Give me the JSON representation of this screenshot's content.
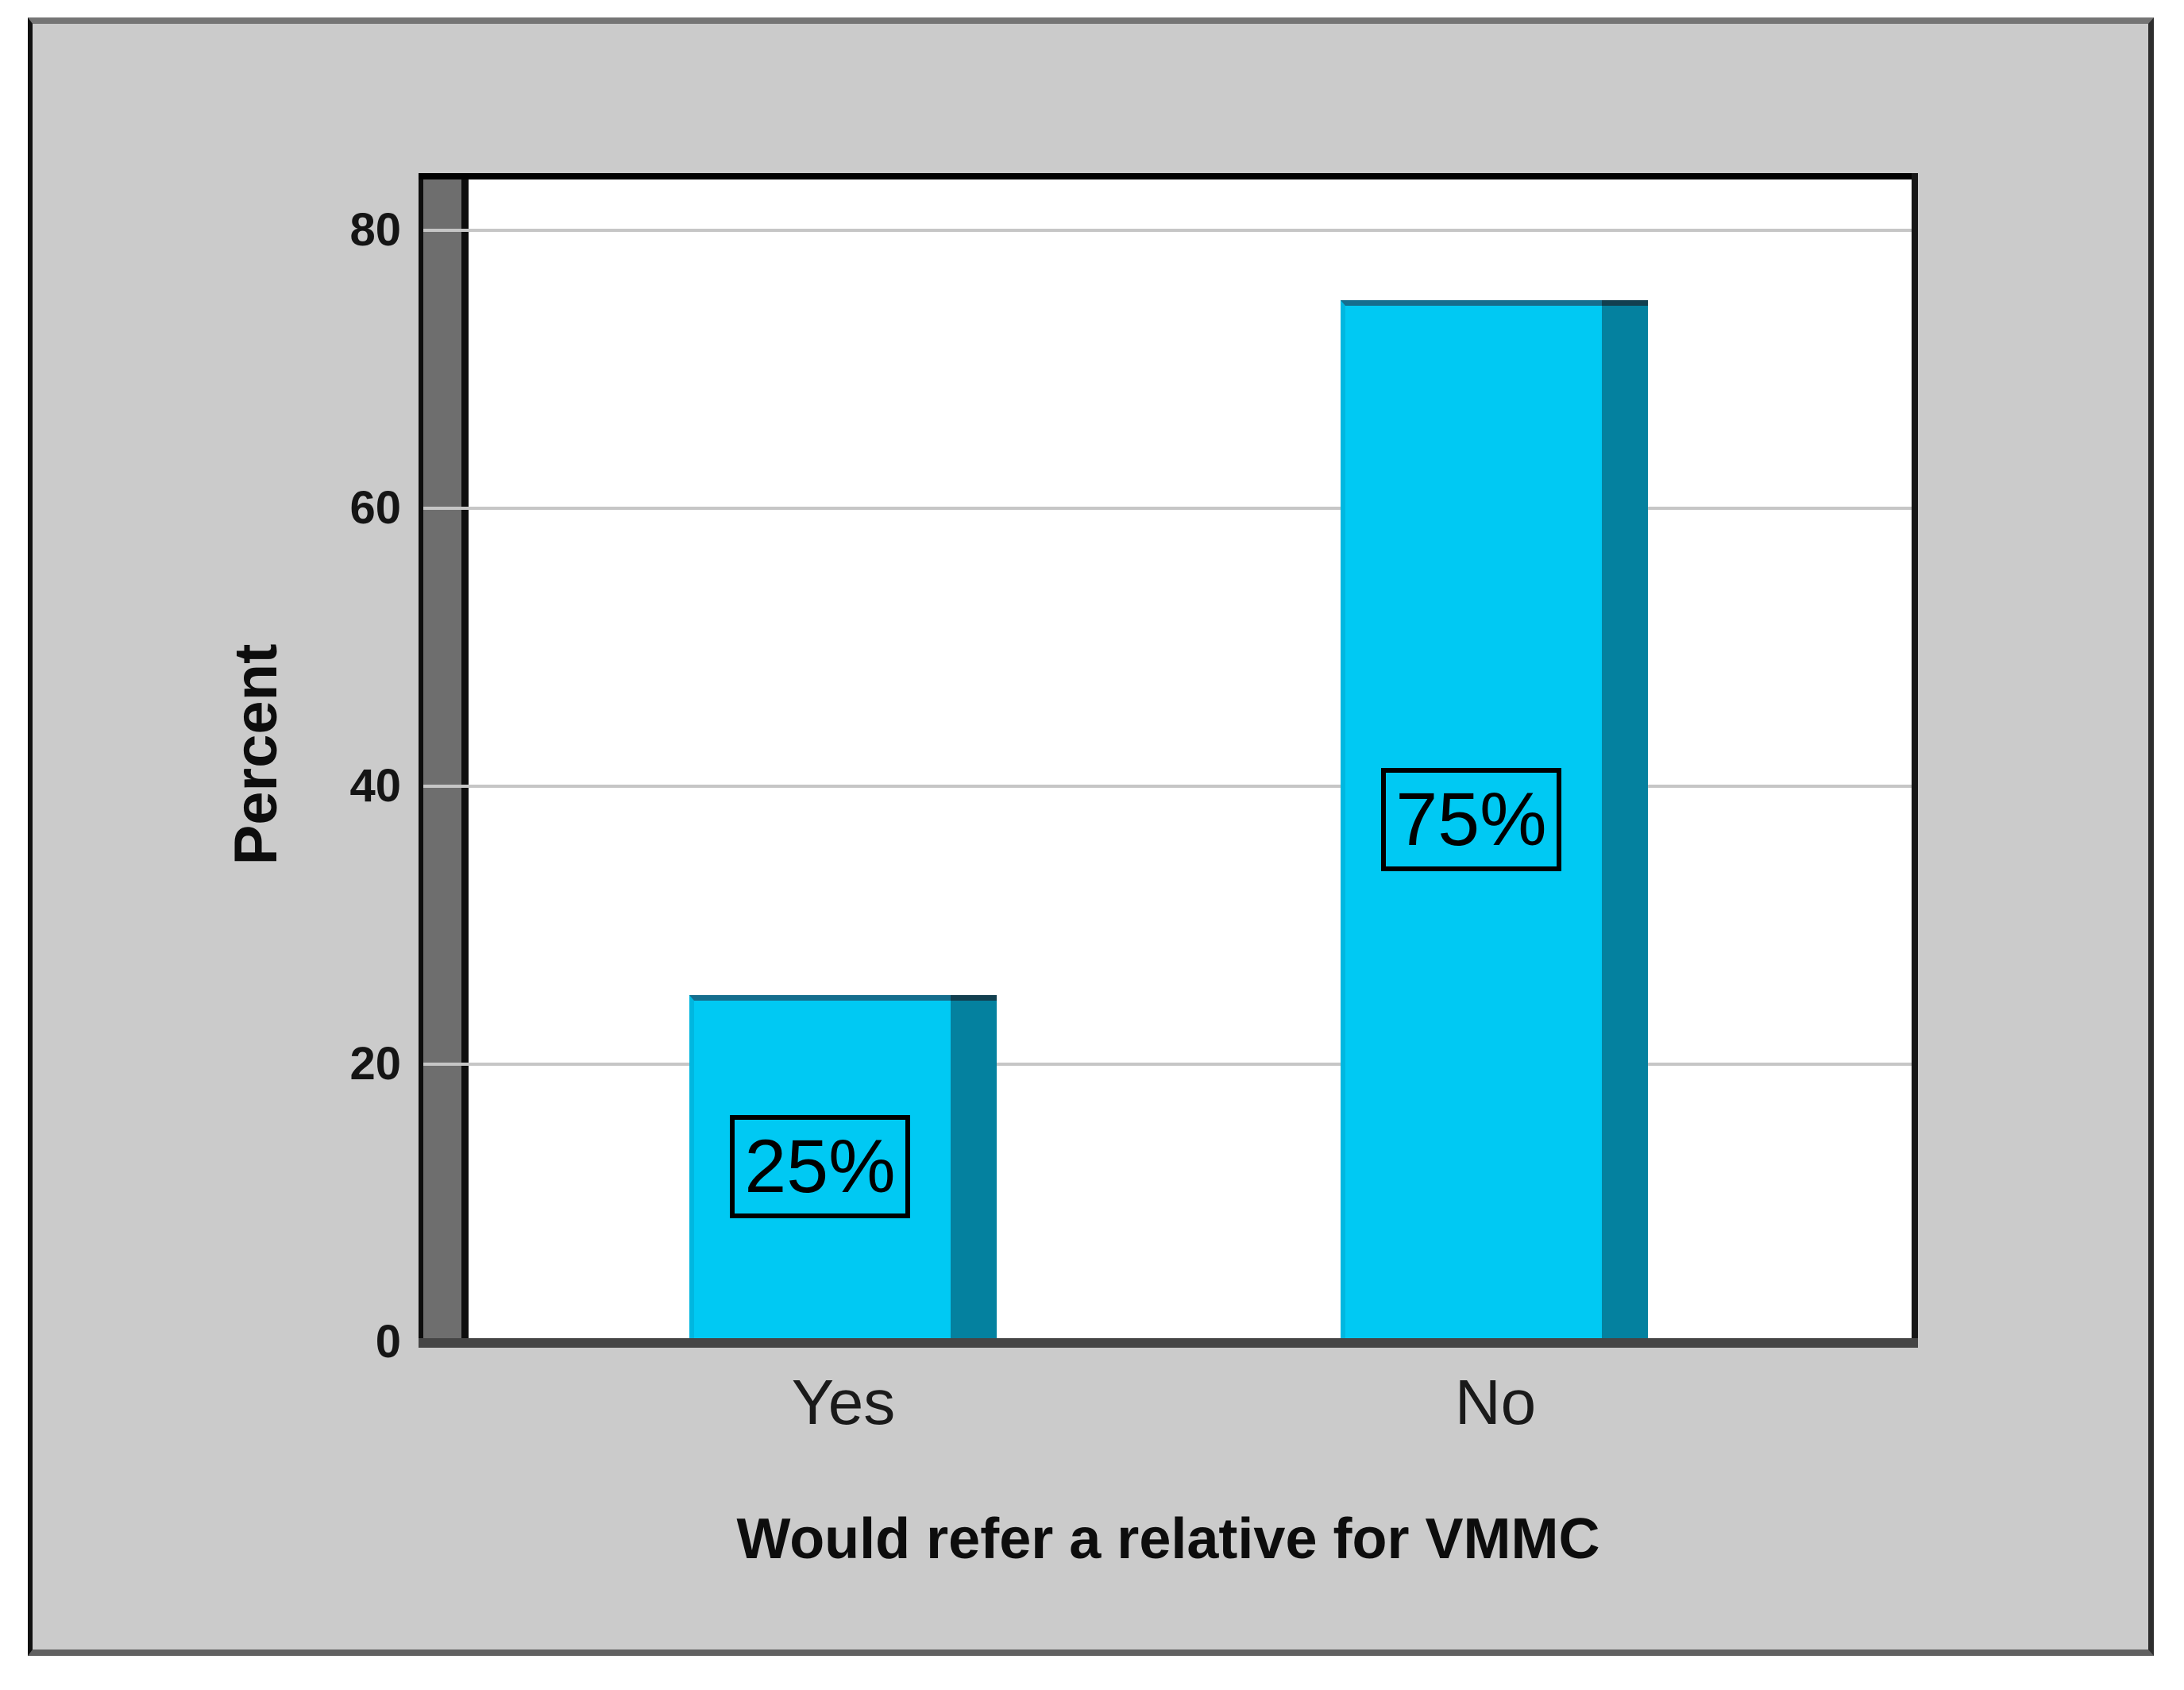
{
  "chart_data": {
    "type": "bar",
    "title": "",
    "xlabel": "Would refer a relative for VMMC",
    "ylabel": "Percent",
    "categories": [
      "Yes",
      "No"
    ],
    "values": [
      25,
      75
    ],
    "bar_labels": [
      "25%",
      "75%"
    ],
    "yticks": [
      0,
      20,
      40,
      60,
      80
    ],
    "ylim": [
      0,
      84
    ],
    "grid": true,
    "legend": "none",
    "colors": {
      "bar_face": "#00c9f3",
      "bar_side": "#04819f",
      "bar_top_edge": "#156e8e",
      "bar_side_top_edge": "#123f4f",
      "gridline": "#c6c6c6",
      "plot_background": "#ffffff",
      "chart_background": "#cbcbcb",
      "wall": "#6e6e6e",
      "text": "#111111"
    }
  }
}
